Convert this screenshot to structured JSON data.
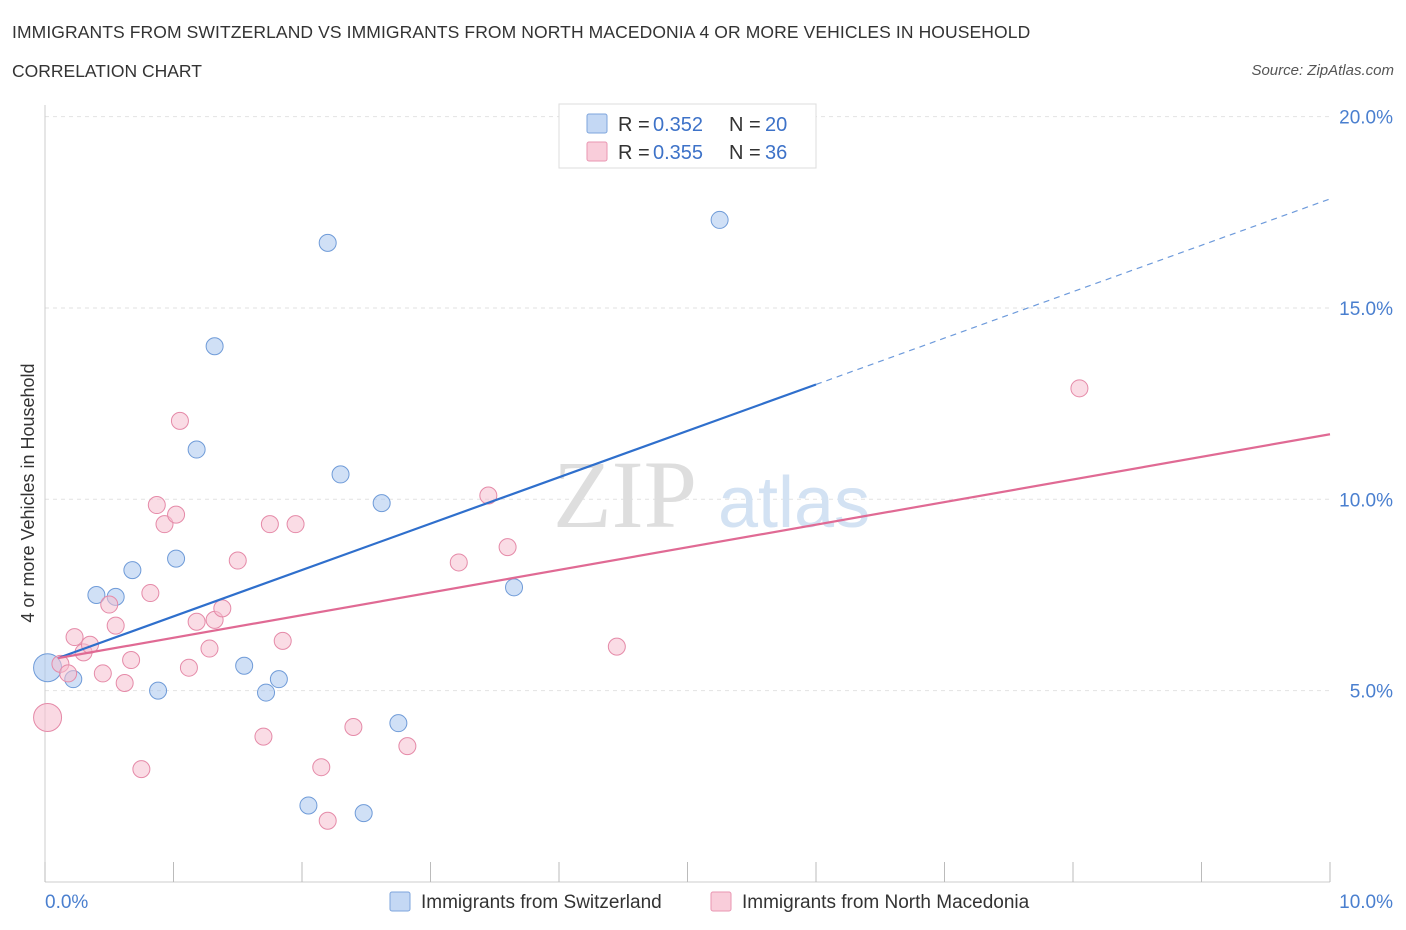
{
  "header": {
    "title": "IMMIGRANTS FROM SWITZERLAND VS IMMIGRANTS FROM NORTH MACEDONIA 4 OR MORE VEHICLES IN HOUSEHOLD",
    "subtitle": "CORRELATION CHART",
    "source": "Source: ZipAtlas.com"
  },
  "watermark": {
    "zip": "ZIP",
    "atlas": "atlas"
  },
  "legend": {
    "r_label": "R =",
    "n_label": "N =",
    "series": [
      {
        "r": "0.352",
        "n": "20"
      },
      {
        "r": "0.355",
        "n": "36"
      }
    ]
  },
  "chart_data": {
    "type": "scatter",
    "title": "IMMIGRANTS FROM SWITZERLAND VS IMMIGRANTS FROM NORTH MACEDONIA 4 OR MORE VEHICLES IN HOUSEHOLD",
    "subtitle": "CORRELATION CHART",
    "xlabel": "",
    "ylabel": "4 or more Vehicles in Household",
    "xlim": [
      0,
      10
    ],
    "ylim": [
      0,
      20
    ],
    "x_tick_labels": [
      "0.0%",
      "10.0%"
    ],
    "y_ticks": [
      5,
      10,
      15,
      20
    ],
    "y_tick_labels": [
      "5.0%",
      "10.0%",
      "15.0%",
      "20.0%"
    ],
    "grid": true,
    "legend_position": "top-center",
    "series": [
      {
        "name": "Immigrants from Switzerland",
        "color": "#a9c6ee",
        "stroke": "#6f9bd8",
        "trend_color": "#2f6fcc",
        "r": 0.352,
        "n": 20,
        "trend": {
          "x_start": 0.1,
          "y_start": 5.85,
          "x_solid_end": 6.0,
          "y_solid_end": 13.0,
          "x_end": 10.0,
          "y_end": 17.85
        },
        "points": [
          {
            "x": 0.02,
            "y": 5.6,
            "big": true
          },
          {
            "x": 0.22,
            "y": 5.3
          },
          {
            "x": 0.4,
            "y": 7.5
          },
          {
            "x": 0.55,
            "y": 7.45
          },
          {
            "x": 0.68,
            "y": 8.15
          },
          {
            "x": 0.88,
            "y": 5.0
          },
          {
            "x": 1.02,
            "y": 8.45
          },
          {
            "x": 1.18,
            "y": 11.3
          },
          {
            "x": 1.32,
            "y": 14.0
          },
          {
            "x": 1.55,
            "y": 5.65
          },
          {
            "x": 1.72,
            "y": 4.95
          },
          {
            "x": 1.82,
            "y": 5.3
          },
          {
            "x": 2.05,
            "y": 2.0
          },
          {
            "x": 2.2,
            "y": 16.7
          },
          {
            "x": 2.3,
            "y": 10.65
          },
          {
            "x": 2.48,
            "y": 1.8
          },
          {
            "x": 2.62,
            "y": 9.9
          },
          {
            "x": 2.75,
            "y": 4.15
          },
          {
            "x": 3.65,
            "y": 7.7
          },
          {
            "x": 5.25,
            "y": 17.3
          }
        ]
      },
      {
        "name": "Immigrants from North Macedonia",
        "color": "#f6bfd0",
        "stroke": "#e58aa8",
        "trend_color": "#e06a94",
        "r": 0.355,
        "n": 36,
        "trend": {
          "x_start": 0.1,
          "y_start": 5.85,
          "x_end": 10.0,
          "y_end": 11.7
        },
        "points": [
          {
            "x": 0.02,
            "y": 4.3,
            "big": true
          },
          {
            "x": 0.12,
            "y": 5.7
          },
          {
            "x": 0.18,
            "y": 5.45
          },
          {
            "x": 0.23,
            "y": 6.4
          },
          {
            "x": 0.3,
            "y": 6.0
          },
          {
            "x": 0.35,
            "y": 6.2
          },
          {
            "x": 0.45,
            "y": 5.45
          },
          {
            "x": 0.5,
            "y": 7.25
          },
          {
            "x": 0.55,
            "y": 6.7
          },
          {
            "x": 0.62,
            "y": 5.2
          },
          {
            "x": 0.67,
            "y": 5.8
          },
          {
            "x": 0.75,
            "y": 2.95
          },
          {
            "x": 0.82,
            "y": 7.55
          },
          {
            "x": 0.87,
            "y": 9.85
          },
          {
            "x": 0.93,
            "y": 9.35
          },
          {
            "x": 1.02,
            "y": 9.6
          },
          {
            "x": 1.05,
            "y": 12.05
          },
          {
            "x": 1.12,
            "y": 5.6
          },
          {
            "x": 1.18,
            "y": 6.8
          },
          {
            "x": 1.28,
            "y": 6.1
          },
          {
            "x": 1.32,
            "y": 6.85
          },
          {
            "x": 1.38,
            "y": 7.15
          },
          {
            "x": 1.5,
            "y": 8.4
          },
          {
            "x": 1.7,
            "y": 3.8
          },
          {
            "x": 1.75,
            "y": 9.35
          },
          {
            "x": 1.85,
            "y": 6.3
          },
          {
            "x": 1.95,
            "y": 9.35
          },
          {
            "x": 2.15,
            "y": 3.0
          },
          {
            "x": 2.2,
            "y": 1.6
          },
          {
            "x": 2.4,
            "y": 4.05
          },
          {
            "x": 2.82,
            "y": 3.55
          },
          {
            "x": 3.22,
            "y": 8.35
          },
          {
            "x": 3.45,
            "y": 10.1
          },
          {
            "x": 3.6,
            "y": 8.75
          },
          {
            "x": 4.45,
            "y": 6.15
          },
          {
            "x": 8.05,
            "y": 12.9
          }
        ]
      }
    ]
  }
}
